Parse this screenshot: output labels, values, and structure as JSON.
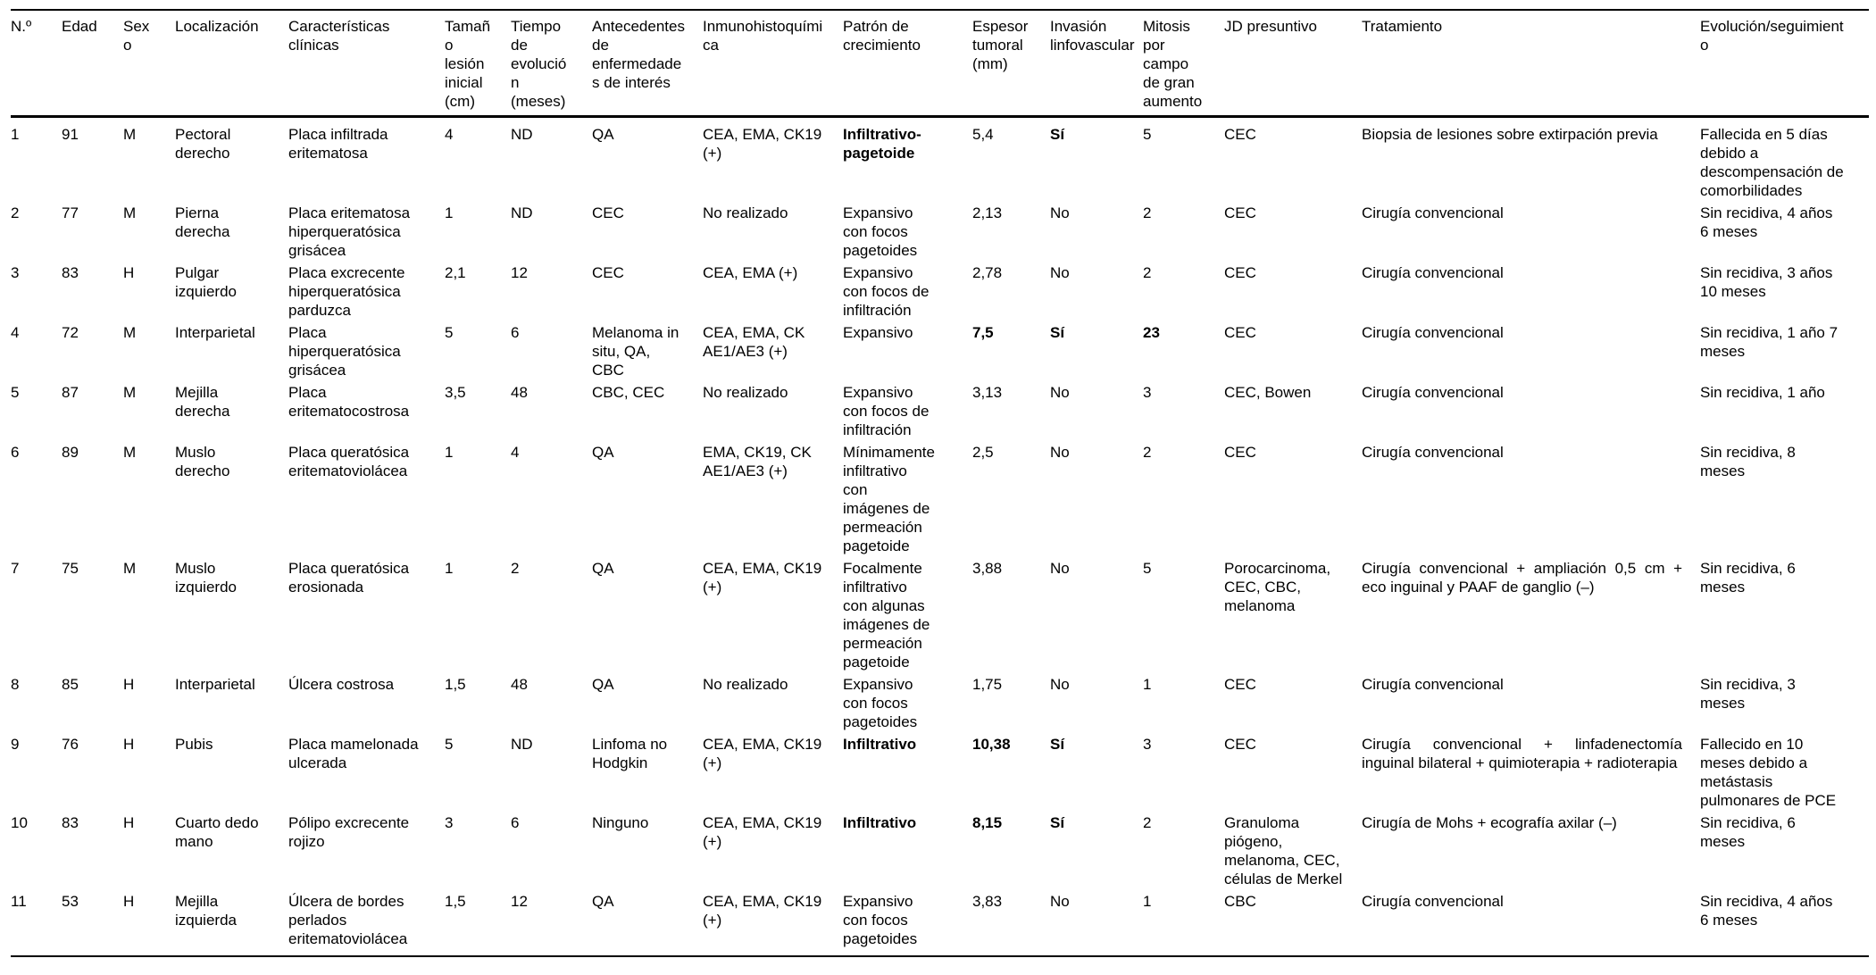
{
  "table": {
    "headers": [
      "N.º",
      "Edad",
      "Sexo",
      "Localización",
      "Características clínicas",
      "Tamaño lesión inicial (cm)",
      "Tiempo de evolución (meses)",
      "Antecedentes de enfermedades de interés",
      "Inmunohistoquímica",
      "Patrón de crecimiento",
      "Espesor tumoral (mm)",
      "Invasión linfovascular",
      "Mitosis por campo de gran aumento",
      "JD presuntivo",
      "Tratamiento",
      "Evolución/seguimiento"
    ],
    "rows": [
      [
        "1",
        "91",
        "M",
        "Pectoral derecho",
        "Placa infiltrada eritematosa",
        "4",
        "ND",
        "QA",
        "CEA, EMA, CK19 (+)",
        "Infiltrativo-pagetoide",
        "5,4",
        "Sí",
        "5",
        "CEC",
        "Biopsia de lesiones sobre extirpación previa",
        "Fallecida en 5 días debido a descompensación de comorbilidades"
      ],
      [
        "2",
        "77",
        "M",
        "Pierna derecha",
        "Placa eritematosa hiperqueratósica grisácea",
        "1",
        "ND",
        "CEC",
        "No realizado",
        "Expansivo con focos pagetoides",
        "2,13",
        "No",
        "2",
        "CEC",
        "Cirugía convencional",
        "Sin recidiva, 4 años 6 meses"
      ],
      [
        "3",
        "83",
        "H",
        "Pulgar izquierdo",
        "Placa excrecente hiperqueratósica parduzca",
        "2,1",
        "12",
        "CEC",
        "CEA, EMA (+)",
        "Expansivo con focos de infiltración",
        "2,78",
        "No",
        "2",
        "CEC",
        "Cirugía convencional",
        "Sin recidiva, 3 años 10 meses"
      ],
      [
        "4",
        "72",
        "M",
        "Interparietal",
        "Placa hiperqueratósica grisácea",
        "5",
        "6",
        "Melanoma in situ, QA, CBC",
        "CEA, EMA, CK AE1/AE3 (+)",
        "Expansivo",
        "7,5",
        "Sí",
        "23",
        "CEC",
        "Cirugía convencional",
        "Sin recidiva, 1 año 7 meses"
      ],
      [
        "5",
        "87",
        "M",
        "Mejilla derecha",
        "Placa eritematocostrosa",
        "3,5",
        "48",
        "CBC, CEC",
        "No realizado",
        "Expansivo con focos de infiltración",
        "3,13",
        "No",
        "3",
        "CEC, Bowen",
        "Cirugía convencional",
        "Sin recidiva, 1 año"
      ],
      [
        "6",
        "89",
        "M",
        "Muslo derecho",
        "Placa queratósica eritematoviolácea",
        "1",
        "4",
        "QA",
        "EMA, CK19, CK AE1/AE3 (+)",
        "Mínimamente infiltrativo con imágenes de permeación pagetoide",
        "2,5",
        "No",
        "2",
        "CEC",
        "Cirugía convencional",
        "Sin recidiva, 8 meses"
      ],
      [
        "7",
        "75",
        "M",
        "Muslo izquierdo",
        "Placa queratósica erosionada",
        "1",
        "2",
        "QA",
        "CEA, EMA, CK19 (+)",
        "Focalmente infiltrativo con algunas imágenes de permeación pagetoide",
        "3,88",
        "No",
        "5",
        "Porocarcinoma, CEC, CBC, melanoma",
        "Cirugía convencional + ampliación 0,5 cm + eco inguinal y PAAF de ganglio (–)",
        "Sin recidiva, 6 meses"
      ],
      [
        "8",
        "85",
        "H",
        "Interparietal",
        "Úlcera costrosa",
        "1,5",
        "48",
        "QA",
        "No realizado",
        "Expansivo con focos pagetoides",
        "1,75",
        "No",
        "1",
        "CEC",
        "Cirugía convencional",
        "Sin recidiva, 3 meses"
      ],
      [
        "9",
        "76",
        "H",
        "Pubis",
        "Placa mamelonada ulcerada",
        "5",
        "ND",
        "Linfoma no Hodgkin",
        "CEA, EMA, CK19 (+)",
        "Infiltrativo",
        "10,38",
        "Sí",
        "3",
        "CEC",
        "Cirugía convencional + linfadenectomía inguinal bilateral + quimioterapia + radioterapia",
        "Fallecido en 10 meses debido a metástasis pulmonares de PCE"
      ],
      [
        "10",
        "83",
        "H",
        "Cuarto dedo mano",
        "Pólipo excrecente rojizo",
        "3",
        "6",
        "Ninguno",
        "CEA, EMA, CK19 (+)",
        "Infiltrativo",
        "8,15",
        "Sí",
        "2",
        "Granuloma piógeno, melanoma, CEC, células de Merkel",
        "Cirugía de Mohs + ecografía axilar (–)",
        "Sin recidiva, 6 meses"
      ],
      [
        "11",
        "53",
        "H",
        "Mejilla izquierda",
        "Úlcera de bordes perlados eritematoviolácea",
        "1,5",
        "12",
        "QA",
        "CEA, EMA, CK19 (+)",
        "Expansivo con focos pagetoides",
        "3,83",
        "No",
        "1",
        "CBC",
        "Cirugía convencional",
        "Sin recidiva, 4 años 6 meses"
      ]
    ],
    "bold_cells": [
      [
        0,
        9
      ],
      [
        0,
        11
      ],
      [
        3,
        10
      ],
      [
        3,
        11
      ],
      [
        3,
        12
      ],
      [
        8,
        9
      ],
      [
        8,
        10
      ],
      [
        8,
        11
      ],
      [
        9,
        9
      ],
      [
        9,
        10
      ],
      [
        9,
        11
      ]
    ],
    "text_color": "#000000",
    "background_color": "#ffffff"
  }
}
